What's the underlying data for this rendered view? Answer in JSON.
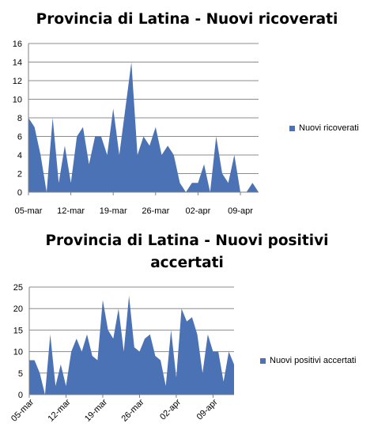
{
  "colors": {
    "area": "#4A72B5",
    "grid": "#8C8C8C",
    "axis": "#808080"
  },
  "chart_data": [
    {
      "type": "area",
      "title": "Provincia di Latina - Nuovi ricoverati",
      "xlabel": "",
      "ylabel": "",
      "ylim": [
        0,
        16
      ],
      "yticks": [
        "0",
        "2",
        "4",
        "6",
        "8",
        "10",
        "12",
        "14",
        "16"
      ],
      "x_tick_labels": [
        "05-mar",
        "12-mar",
        "19-mar",
        "26-mar",
        "02-apr",
        "09-apr"
      ],
      "legend": "right",
      "grid": true,
      "series": [
        {
          "name": "Nuovi ricoverati",
          "values": [
            8,
            7,
            4,
            0,
            8,
            1,
            5,
            1,
            6,
            7,
            3,
            6,
            6,
            4,
            9,
            4,
            9,
            14,
            4,
            6,
            5,
            7,
            4,
            5,
            4,
            1,
            0,
            1,
            1,
            3,
            0,
            6,
            2,
            1,
            4,
            0,
            0,
            1,
            0
          ]
        }
      ]
    },
    {
      "type": "area",
      "title": "Provincia di Latina - Nuovi positivi accertati",
      "xlabel": "",
      "ylabel": "",
      "ylim": [
        0,
        25
      ],
      "yticks": [
        "0",
        "5",
        "10",
        "15",
        "20",
        "25"
      ],
      "x_tick_labels": [
        "05-mar",
        "12-mar",
        "19-mar",
        "26-mar",
        "02-apr",
        "09-apr"
      ],
      "legend": "right",
      "grid": true,
      "series": [
        {
          "name": "Nuovi positivi accertati",
          "values": [
            8,
            8,
            5,
            0,
            14,
            2,
            7,
            2,
            10,
            13,
            10,
            14,
            9,
            8,
            22,
            15,
            13,
            20,
            10,
            23,
            11,
            10,
            13,
            14,
            9,
            8,
            2,
            15,
            4,
            20,
            17,
            18,
            14,
            5,
            14,
            10,
            10,
            3,
            10,
            7
          ]
        }
      ]
    }
  ]
}
